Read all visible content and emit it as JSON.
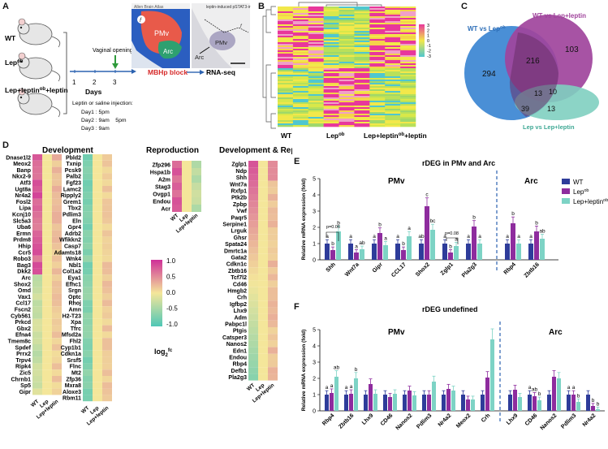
{
  "panel_labels": [
    "A",
    "B",
    "C",
    "D",
    "E",
    "F"
  ],
  "panel_a": {
    "mice": [
      "WT",
      "Lep",
      "Lep+leptin"
    ],
    "lep_sup": "ob",
    "vaginal_opening": "Vaginal opening",
    "days_label": "Days",
    "day_ticks": [
      "1",
      "2",
      "3"
    ],
    "injection_title": "Leptin or saline injection:",
    "injection_lines": [
      "Day1 : 5pm",
      "Day2 : 9am    5pm",
      "Day3 : 9am"
    ],
    "mbhp_block": "MBHp block",
    "rnaseq": "RNA-seq",
    "atlas_label": "Allen Brain Atlas",
    "pstat_label": "leptin-induced pSTAT3-ir",
    "pmv": "PMv",
    "arc": "Arc",
    "f": "f"
  },
  "panel_b": {
    "columns": [
      "WT",
      "Lep",
      "Lep+leptin"
    ],
    "col_sup": "ob",
    "scale": [
      "3",
      "2",
      "1",
      "0",
      "-1",
      "-2",
      "-3"
    ]
  },
  "panel_c": {
    "set_wt_lep": "WT vs Lep",
    "set_wt_lepleptin": "WT vs Lep+leptin",
    "set_lep_lepleptin": "Lep vs Lep+leptin",
    "sup": "ob",
    "counts": {
      "only_a": "294",
      "ab": "216",
      "only_b": "103",
      "abc": "13",
      "bc": "10",
      "ac": "39",
      "only_c": "13"
    }
  },
  "panel_d": {
    "development_title": "Development",
    "reproduction_title": "Reproduction",
    "devrep_title": "Development & Reproduction",
    "development_genes": [
      "Dnase1l2",
      "Meox2",
      "Banp",
      "Nkx2-9",
      "Atf3",
      "Ugt8a",
      "Nr4a2",
      "Fosl2",
      "Lipa",
      "Kcnj10",
      "Slc5a3",
      "Uba6",
      "Ermn",
      "Prdm8",
      "Hhip",
      "Ccr5",
      "Robo3",
      "Bag3",
      "Dkk2",
      "Arc",
      "Shox2",
      "Omd",
      "Vax1",
      "Ccl17",
      "Fscn2",
      "Cyb561",
      "Prkcd",
      "Gbx2",
      "Efna4",
      "Tmem8c",
      "Spdef",
      "Prrx2",
      "Trpv4",
      "Ripk4",
      "Zic5",
      "Chrnb1",
      "Sp5",
      "Gipr"
    ],
    "development_genes2": [
      "Pbld2",
      "Txnip",
      "Pcsk9",
      "Palb2",
      "Fgf23",
      "Lamc2",
      "Ripply2",
      "Grem1",
      "Tbx2",
      "Pdlim3",
      "Eln",
      "Gpr4",
      "Adrb2",
      "Wfikkn2",
      "Casp7",
      "Adamts18",
      "Wnk4",
      "Nbl1",
      "Col1a2",
      "Eya1",
      "Efhc1",
      "Srgn",
      "Optc",
      "Rhoj",
      "Amn",
      "H2-T23",
      "Xpa",
      "Tfrc",
      "Mfsd2a",
      "Fhl2",
      "Cyp1b1",
      "Cdkn1a",
      "Srsf5",
      "Flnc",
      "Mt2",
      "Zfp36",
      "Mxra8",
      "Aloxe3",
      "Rbm11"
    ],
    "reproduction_genes": [
      "Zfp296",
      "Hspa1b",
      "A2m",
      "Stag3",
      "Ovgp1",
      "Endou",
      "Acr"
    ],
    "devrep_genes": [
      "Zglp1",
      "Ndp",
      "Shh",
      "Wnt7a",
      "Rxfp1",
      "Ptk2b",
      "Zpbp",
      "Vwf",
      "Paqr5",
      "Serpine1",
      "Lrguk",
      "Ghsr",
      "Spata24",
      "Dmrtc1a",
      "Gata2",
      "Cdkn1c",
      "Zbtb16",
      "Tcf7l2",
      "Cd46",
      "Hmgb2",
      "Crh",
      "Igfbp2",
      "Lhx9",
      "Adm",
      "Pabpc1l",
      "Ptgis",
      "Catsper3",
      "Nanos2",
      "Edn1",
      "Endou",
      "Rbp4",
      "Defb1",
      "Pla2g3"
    ],
    "col_labels": [
      "WT",
      "Lep",
      "Lep+leptin"
    ],
    "col_sup": "ob",
    "legend_ticks": [
      "1.0",
      "0.5",
      "0.0",
      "-0.5",
      "-1.0"
    ],
    "legend_title": "log",
    "legend_sub": "2",
    "legend_suffix": "fc"
  },
  "colors": {
    "wt": "#2e3c9a",
    "lep": "#8e2c9e",
    "lepleptin": "#7dd3c5",
    "venn_a": "#4a8fd6",
    "venn_b": "#a0449c",
    "venn_c": "#7fcfc0"
  },
  "legend_groups": [
    "WT",
    "Lep",
    "Lep+leptin"
  ],
  "legend_sup": "ob",
  "chart_data": [
    {
      "type": "bar",
      "title": "rDEG in PMv and Arc",
      "ylabel": "Relative mRNA expression (fold)",
      "ylim": [
        0,
        5
      ],
      "yticks": [
        "0",
        "1",
        "2",
        "3",
        "4",
        "5"
      ],
      "region_labels": [
        "PMv",
        "Arc"
      ],
      "pvals": [
        "p=0.06",
        "p=0.08"
      ],
      "categories": [
        "Shh",
        "Wnt7a",
        "Gipr",
        "CCL17",
        "Shox2",
        "Zglp1",
        "Pla2g3",
        "Rbp4",
        "Zbtb16"
      ],
      "series": [
        {
          "name": "WT",
          "values": [
            1.0,
            1.0,
            1.0,
            1.0,
            1.0,
            1.0,
            1.0,
            1.0,
            1.0
          ],
          "letters": [
            "a",
            "a",
            "a",
            "a",
            "ab",
            "a",
            "a",
            "a",
            "a"
          ]
        },
        {
          "name": "Lep",
          "values": [
            0.6,
            0.45,
            1.65,
            0.6,
            3.3,
            0.45,
            2.05,
            2.25,
            1.75
          ],
          "letters": [
            "b",
            "a",
            "b",
            "b",
            "c",
            "b",
            "b",
            "b",
            "b"
          ]
        },
        {
          "name": "Lep+leptin",
          "values": [
            1.75,
            0.65,
            0.9,
            1.45,
            1.85,
            0.85,
            1.0,
            1.0,
            1.3
          ],
          "letters": [
            "b",
            "ab",
            "a",
            "a",
            "bc",
            "a",
            "a",
            "a",
            "ab"
          ]
        }
      ]
    },
    {
      "type": "bar",
      "title": "rDEG undefined",
      "ylabel": "Relative mRNA expression (fold)",
      "ylim": [
        0,
        5
      ],
      "yticks": [
        "0",
        "1",
        "2",
        "3",
        "4",
        "5"
      ],
      "region_labels": [
        "PMv",
        "Arc"
      ],
      "categories": [
        "Rbp4",
        "Zbtb16",
        "Lhx9",
        "CD46",
        "Nanos2",
        "Pdlim3",
        "Nr4a2",
        "Meox2",
        "Crh",
        "Lhx9",
        "CD46",
        "Nanos2",
        "Pdlim3",
        "Nr4a2"
      ],
      "series": [
        {
          "name": "WT",
          "values": [
            1.0,
            1.0,
            1.0,
            1.0,
            1.0,
            1.0,
            1.0,
            1.0,
            1.0,
            1.0,
            1.0,
            1.0,
            1.0,
            1.0
          ],
          "letters": [
            "a",
            "a",
            "",
            "",
            "",
            "",
            "",
            "",
            "",
            "",
            "a",
            "",
            "a",
            ""
          ]
        },
        {
          "name": "Lep",
          "values": [
            1.1,
            1.05,
            1.65,
            0.85,
            1.25,
            1.0,
            1.35,
            0.7,
            2.05,
            1.3,
            0.9,
            2.1,
            1.0,
            0.3
          ],
          "letters": [
            "a",
            "a",
            "",
            "",
            "",
            "",
            "",
            "",
            "",
            "",
            "ab",
            "",
            "a",
            "b"
          ]
        },
        {
          "name": "Lep+leptin",
          "values": [
            2.1,
            2.0,
            1.05,
            1.05,
            0.95,
            1.8,
            1.25,
            0.7,
            4.4,
            0.85,
            0.65,
            2.0,
            0.55,
            0.1
          ],
          "letters": [
            "ab",
            "b",
            "",
            "",
            "",
            "",
            "",
            "",
            "",
            "",
            "b",
            "",
            "b",
            "b"
          ]
        }
      ]
    }
  ]
}
